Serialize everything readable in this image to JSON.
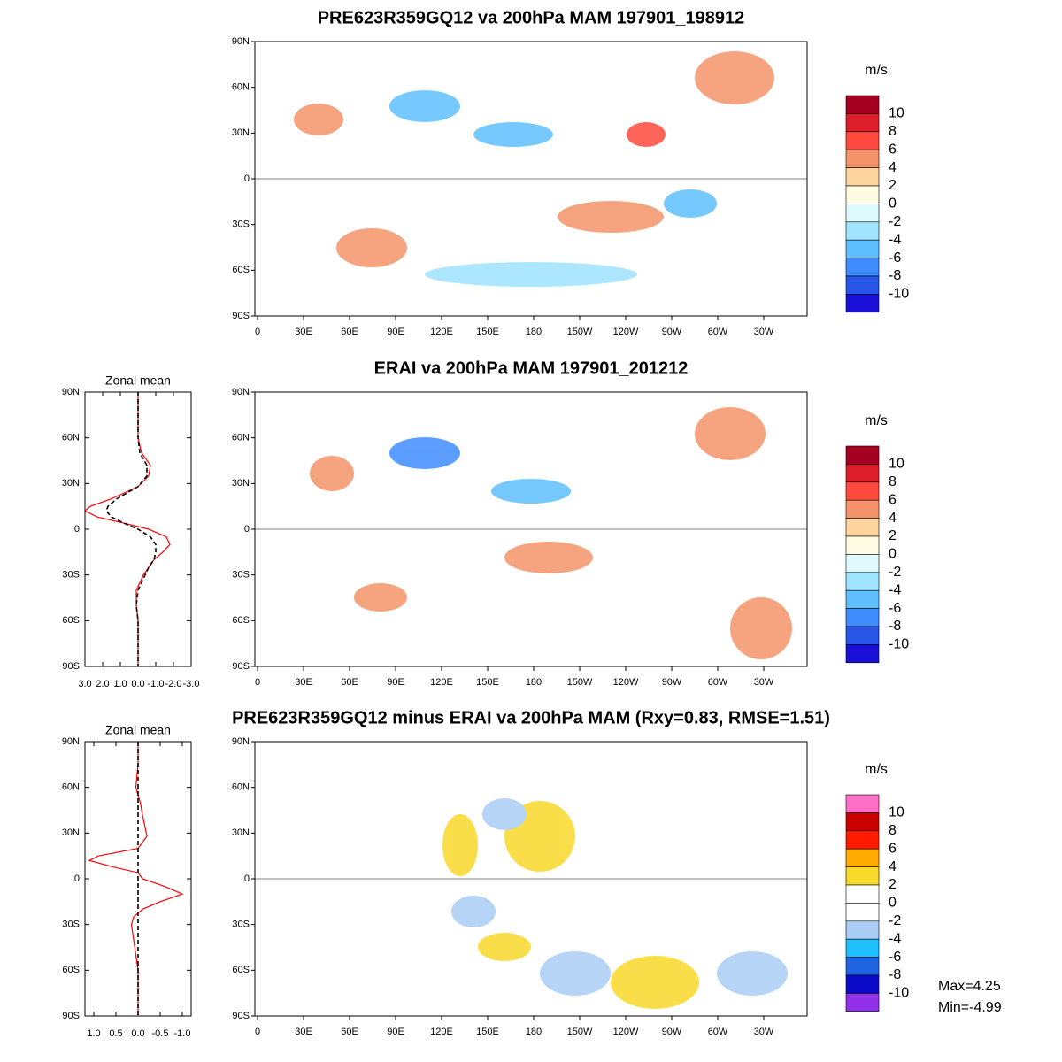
{
  "maps": [
    {
      "title": "PRE623R359GQ12 va 200hPa MAM 197901_198912",
      "lat_labels": [
        "90N",
        "60N",
        "30N",
        "0",
        "30S",
        "60S",
        "90S"
      ],
      "lon_labels": [
        "0",
        "30E",
        "60E",
        "90E",
        "120E",
        "150E",
        "180",
        "150W",
        "120W",
        "90W",
        "60W",
        "30W"
      ],
      "colorbar": {
        "unit": "m/s",
        "labels": [
          10,
          8,
          6,
          4,
          2,
          0,
          -2,
          -4,
          -6,
          -8,
          -10
        ],
        "colors": [
          "#a50021",
          "#dc1e2a",
          "#ff4a3d",
          "#f5946a",
          "#fdd49e",
          "#fffbe2",
          "#e0fbff",
          "#9fe3ff",
          "#5ec0ff",
          "#3f8cff",
          "#2655e8",
          "#1a10d8"
        ]
      }
    },
    {
      "title": "ERAI va 200hPa MAM 197901_201212",
      "lat_labels": [
        "90N",
        "60N",
        "30N",
        "0",
        "30S",
        "60S",
        "90S"
      ],
      "lon_labels": [
        "0",
        "30E",
        "60E",
        "90E",
        "120E",
        "150E",
        "180",
        "150W",
        "120W",
        "90W",
        "60W",
        "30W"
      ],
      "colorbar": {
        "unit": "m/s",
        "labels": [
          10,
          8,
          6,
          4,
          2,
          0,
          -2,
          -4,
          -6,
          -8,
          -10
        ],
        "colors": [
          "#a50021",
          "#dc1e2a",
          "#ff4a3d",
          "#f5946a",
          "#fdd49e",
          "#fffbe2",
          "#e0fbff",
          "#9fe3ff",
          "#5ec0ff",
          "#3f8cff",
          "#2655e8",
          "#1a10d8"
        ]
      }
    },
    {
      "title": "PRE623R359GQ12 minus ERAI va 200hPa MAM (Rxy=0.83, RMSE=1.51)",
      "lat_labels": [
        "90N",
        "60N",
        "30N",
        "0",
        "30S",
        "60S",
        "90S"
      ],
      "lon_labels": [
        "0",
        "30E",
        "60E",
        "90E",
        "120E",
        "150E",
        "180",
        "150W",
        "120W",
        "90W",
        "60W",
        "30W"
      ],
      "colorbar": {
        "unit": "m/s",
        "labels": [
          10,
          8,
          6,
          4,
          2,
          0,
          -2,
          -4,
          -6,
          -8,
          -10
        ],
        "colors": [
          "#ff6ec7",
          "#c80000",
          "#ff1a00",
          "#ffaa00",
          "#f8d92a",
          "#ffffff",
          "#ffffff",
          "#a9cdf5",
          "#1fbfff",
          "#1f64e0",
          "#0a0ac8",
          "#9030e8"
        ]
      }
    }
  ],
  "chart_data": [
    {
      "type": "line",
      "title": "Zonal mean",
      "xlim": [
        3,
        -3
      ],
      "ylim": [
        -90,
        90
      ],
      "xticks": [
        {
          "value": 3,
          "label": "3.0"
        },
        {
          "value": 2,
          "label": "2.0"
        },
        {
          "value": 1,
          "label": "1.0"
        },
        {
          "value": 0,
          "label": "0.0"
        },
        {
          "value": -1,
          "label": "-1.0"
        },
        {
          "value": -2,
          "label": "-2.0"
        },
        {
          "value": -3,
          "label": "-3.0"
        }
      ],
      "yticks": [
        {
          "value": 90,
          "label": "90N"
        },
        {
          "value": 60,
          "label": "60N"
        },
        {
          "value": 30,
          "label": "30N"
        },
        {
          "value": 0,
          "label": "0"
        },
        {
          "value": -30,
          "label": "30S"
        },
        {
          "value": -60,
          "label": "60S"
        },
        {
          "value": -90,
          "label": "90S"
        }
      ],
      "series": [
        {
          "color": "#ff0000",
          "dash": false,
          "lat": [
            90,
            75,
            60,
            50,
            42,
            35,
            28,
            20,
            15,
            12,
            8,
            4,
            0,
            -5,
            -10,
            -15,
            -20,
            -25,
            -30,
            -40,
            -50,
            -60,
            -75,
            -90
          ],
          "values": [
            0,
            0,
            0,
            -0.2,
            -0.7,
            -0.6,
            0,
            1.5,
            2.7,
            3,
            2.3,
            0.8,
            -0.6,
            -1.6,
            -1.8,
            -1.4,
            -0.9,
            -0.6,
            -0.3,
            0.1,
            0.1,
            0,
            0,
            0
          ]
        },
        {
          "color": "#000000",
          "dash": true,
          "lat": [
            90,
            75,
            60,
            50,
            42,
            35,
            28,
            20,
            15,
            12,
            8,
            4,
            0,
            -5,
            -10,
            -15,
            -20,
            -25,
            -30,
            -40,
            -50,
            -60,
            -75,
            -90
          ],
          "values": [
            0,
            0,
            0,
            -0.1,
            -0.5,
            -0.5,
            0,
            1.2,
            1.7,
            1.8,
            1.5,
            0.8,
            0,
            -0.7,
            -1,
            -1,
            -0.9,
            -0.6,
            -0.4,
            0,
            0.1,
            0,
            0,
            0
          ]
        }
      ]
    },
    {
      "type": "line",
      "title": "Zonal mean",
      "xlim": [
        1.2,
        -1.2
      ],
      "ylim": [
        -90,
        90
      ],
      "xticks": [
        {
          "value": 1,
          "label": "1.0"
        },
        {
          "value": 0.5,
          "label": "0.5"
        },
        {
          "value": 0,
          "label": "0.0"
        },
        {
          "value": -0.5,
          "label": "-0.5"
        },
        {
          "value": -1,
          "label": "-1.0"
        }
      ],
      "yticks": [
        {
          "value": 90,
          "label": "90N"
        },
        {
          "value": 60,
          "label": "60N"
        },
        {
          "value": 30,
          "label": "30N"
        },
        {
          "value": 0,
          "label": "0"
        },
        {
          "value": -30,
          "label": "30S"
        },
        {
          "value": -60,
          "label": "60S"
        },
        {
          "value": -90,
          "label": "90S"
        }
      ],
      "series": [
        {
          "color": "#ff0000",
          "dash": false,
          "lat": [
            90,
            75,
            60,
            50,
            42,
            35,
            28,
            20,
            15,
            12,
            8,
            4,
            0,
            -5,
            -10,
            -15,
            -20,
            -25,
            -30,
            -40,
            -50,
            -60,
            -75,
            -90
          ],
          "values": [
            0,
            0,
            0.05,
            -0.05,
            -0.1,
            -0.15,
            -0.2,
            0,
            0.9,
            1.1,
            0.6,
            0,
            -0.1,
            -0.6,
            -1.0,
            -0.5,
            -0.1,
            0.1,
            0.15,
            0.1,
            0.05,
            0,
            0,
            0
          ]
        },
        {
          "color": "#000000",
          "dash": true,
          "lat": [
            90,
            -90
          ],
          "values": [
            0,
            0
          ]
        }
      ]
    }
  ],
  "stats": {
    "max": "Max=4.25",
    "min": "Min=-4.99"
  }
}
